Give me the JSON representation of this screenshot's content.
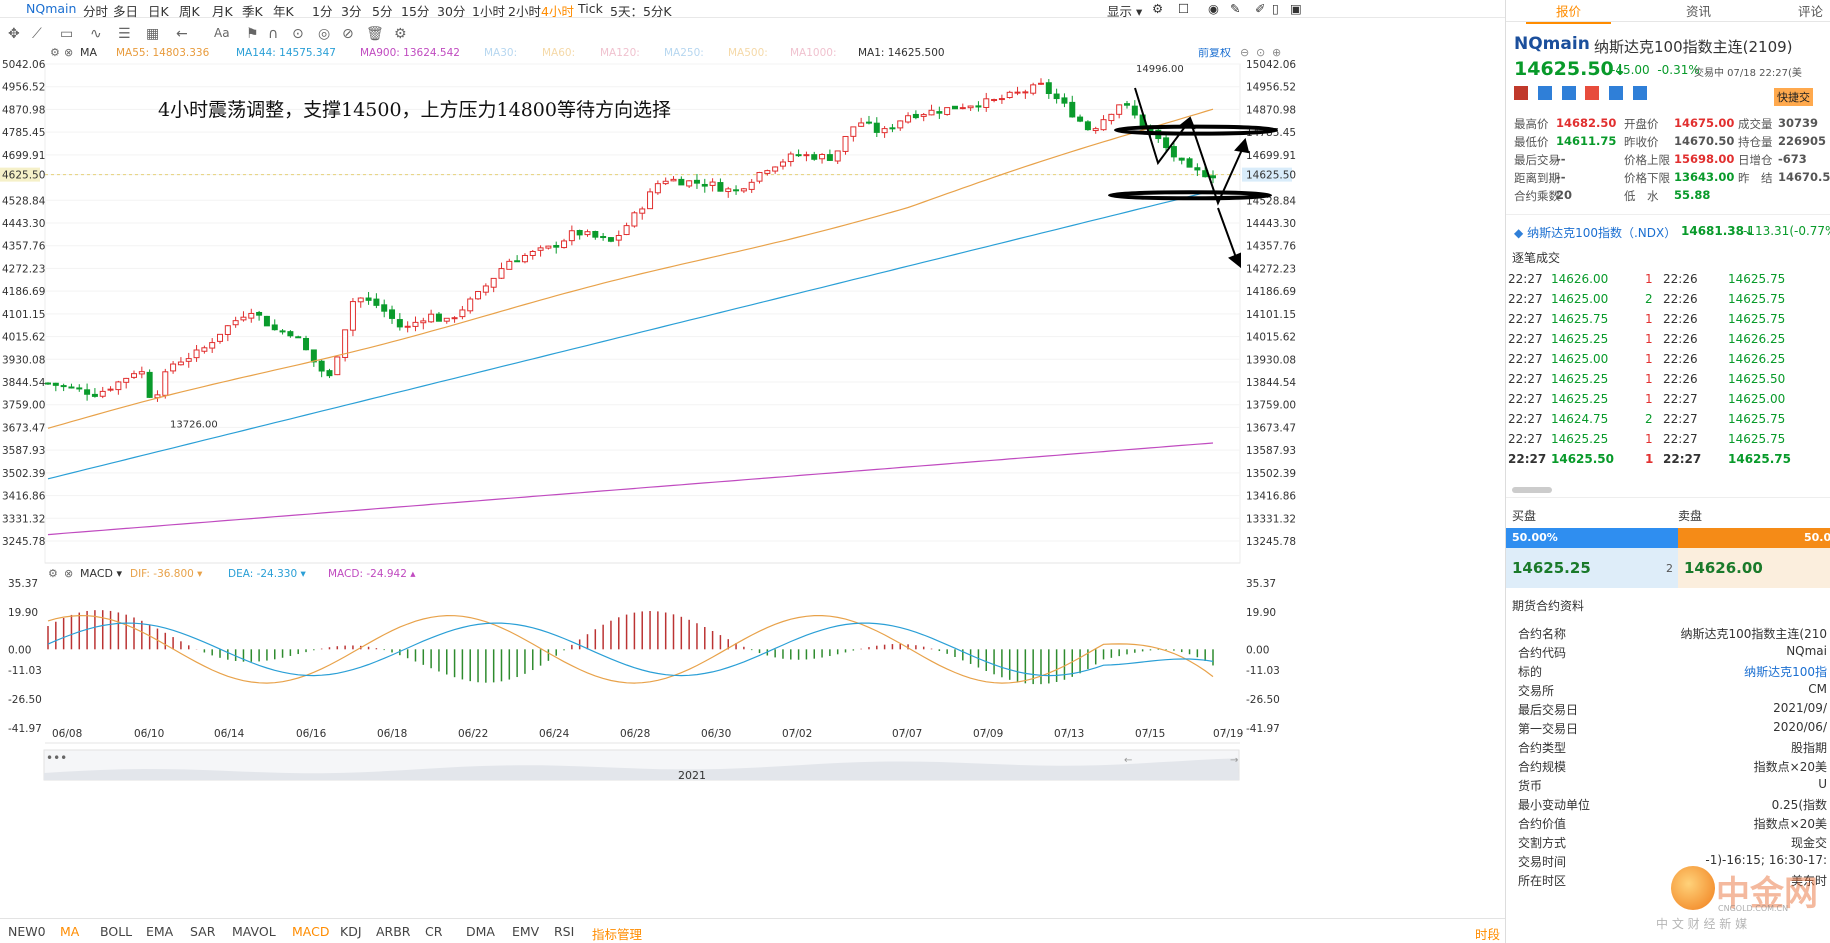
{
  "toolbar": {
    "symbol": "NQmain",
    "periods": [
      "分时",
      "多日",
      "日K",
      "周K",
      "月K",
      "季K",
      "年K",
      "1分",
      "3分",
      "5分",
      "15分",
      "30分",
      "1小时",
      "2小时",
      "4小时",
      "Tick",
      "5天：5分K"
    ],
    "active_period": "4小时",
    "display_label": "显示"
  },
  "ma_legend": {
    "label": "MA",
    "ma55": "MA55: 14803.336",
    "ma144": "MA144: 14575.347",
    "ma900": "MA900: 13624.542",
    "ma30": "MA30:",
    "ma60": "MA60:",
    "ma120": "MA120:",
    "ma250": "MA250:",
    "ma500": "MA500:",
    "ma1000": "MA1000:",
    "ma1": "MA1: 14625.500",
    "adjust": "前复权"
  },
  "annotation": "4小时震荡调整，支撑14500，上方压力14800等待方向选择",
  "price_axis": [
    "5042.06",
    "4956.52",
    "4870.98",
    "4785.45",
    "4699.91",
    "4625.50",
    "4528.84",
    "4443.30",
    "4357.76",
    "4272.23",
    "4186.69",
    "4101.15",
    "4015.62",
    "3930.08",
    "3844.54",
    "3759.00",
    "3673.47",
    "3587.93",
    "3502.39",
    "3416.86",
    "3331.32",
    "3245.78"
  ],
  "price_axis_right": [
    "15042.06",
    "14956.52",
    "14870.98",
    "14785.45",
    "14699.91",
    "14625.50",
    "14528.84",
    "14443.30",
    "14357.76",
    "14272.23",
    "14186.69",
    "14101.15",
    "14015.62",
    "13930.08",
    "13844.54",
    "13759.00",
    "13673.47",
    "13587.93",
    "13502.39",
    "13416.86",
    "13331.32",
    "13245.78"
  ],
  "high_label": "14996.00",
  "low_label": "13726.00",
  "macd_legend": {
    "label": "MACD",
    "dif": "DIF: -36.800",
    "dea": "DEA: -24.330",
    "macd": "MACD: -24.942"
  },
  "macd_axis": [
    "35.37",
    "19.90",
    "0.00",
    "-11.03",
    "-26.50",
    "-41.97"
  ],
  "x_dates": [
    "06/08",
    "06/10",
    "06/14",
    "06/16",
    "06/18",
    "06/22",
    "06/24",
    "06/28",
    "06/30",
    "07/02",
    "07/07",
    "07/09",
    "07/13",
    "07/15",
    "07/19"
  ],
  "year_label": "2021",
  "bottom_tabs": [
    "NEW0",
    "MA",
    "BOLL",
    "EMA",
    "SAR",
    "MAVOL",
    "MACD",
    "KDJ",
    "ARBR",
    "CR",
    "DMA",
    "EMV",
    "RSI",
    "指标管理"
  ],
  "bottom_active": [
    "MA",
    "MACD"
  ],
  "bottom_right": "时段",
  "right": {
    "tabs": [
      "报价",
      "资讯",
      "评论"
    ],
    "symbol": "NQmain",
    "name": "纳斯达克100指数主连(2109)",
    "status": "交易中 07/18 22:27(美",
    "price": "14625.50",
    "change": "-45.00",
    "change_pct": "-0.31%",
    "quick_trade": "快捷交",
    "stats": [
      [
        "最高价",
        "14682.50",
        "开盘价",
        "14675.00",
        "成交量",
        "30739"
      ],
      [
        "最低价",
        "14611.75",
        "昨收价",
        "14670.50",
        "持仓量",
        "226905"
      ],
      [
        "最后交易",
        "--",
        "价格上限",
        "15698.00",
        "日增仓",
        "-673"
      ],
      [
        "距离到期",
        "--",
        "价格下限",
        "13643.00",
        "昨　结",
        "14670.5"
      ],
      [
        "合约乘数",
        "20",
        "低　水",
        "55.88",
        "",
        ""
      ]
    ],
    "ndx_label": "纳斯达克100指数（.NDX）",
    "ndx_price": "14681.38",
    "ndx_change": "-113.31(-0.77%",
    "ticks_title": "逐笔成交",
    "ticks": [
      [
        "22:27",
        "14626.00",
        "1",
        "22:26",
        "14625.75"
      ],
      [
        "22:27",
        "14625.00",
        "2",
        "22:26",
        "14625.75"
      ],
      [
        "22:27",
        "14625.75",
        "1",
        "22:26",
        "14625.75"
      ],
      [
        "22:27",
        "14625.25",
        "1",
        "22:26",
        "14626.25"
      ],
      [
        "22:27",
        "14625.00",
        "1",
        "22:26",
        "14626.25"
      ],
      [
        "22:27",
        "14625.25",
        "1",
        "22:26",
        "14625.50"
      ],
      [
        "22:27",
        "14625.25",
        "1",
        "22:27",
        "14625.00"
      ],
      [
        "22:27",
        "14624.75",
        "2",
        "22:27",
        "14625.75"
      ],
      [
        "22:27",
        "14625.25",
        "1",
        "22:27",
        "14625.75"
      ],
      [
        "22:27",
        "14625.50",
        "1",
        "22:27",
        "14625.75"
      ]
    ],
    "buy_label": "买盘",
    "sell_label": "卖盘",
    "buy_pct": "50.00%",
    "sell_pct": "50.0",
    "bid": "14625.25",
    "bid_qty": "2",
    "ask": "14626.00",
    "info_title": "期货合约资料",
    "info": [
      [
        "合约名称",
        "纳斯达克100指数主连(210"
      ],
      [
        "合约代码",
        "NQmai"
      ],
      [
        "标的",
        "纳斯达克100指"
      ],
      [
        "交易所",
        "CM"
      ],
      [
        "最后交易日",
        "2021/09/"
      ],
      [
        "第一交易日",
        "2020/06/"
      ],
      [
        "合约类型",
        "股指期"
      ],
      [
        "合约规模",
        "指数点×20美"
      ],
      [
        "货币",
        "U"
      ],
      [
        "最小变动单位",
        "0.25(指数"
      ],
      [
        "合约价值",
        "指数点×20美"
      ],
      [
        "交割方式",
        "现金交"
      ],
      [
        "交易时间",
        "-1)-16:15; 16:30-17:"
      ],
      [
        "所在时区",
        "美东时"
      ]
    ],
    "watermark": "中金网",
    "watermark_sub": "CNGOLD.COM.CN",
    "watermark_slogan": "中 文 财 经 新 媒"
  }
}
